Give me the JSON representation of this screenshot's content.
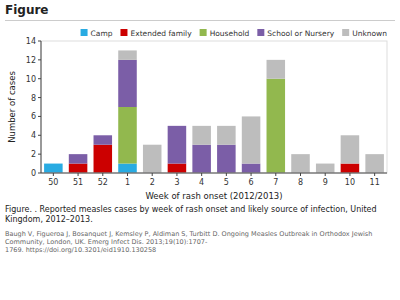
{
  "chart_data": {
    "type": "bar",
    "stacked": true,
    "title": "Figure",
    "xlabel": "Week of rash onset (2012/2013)",
    "ylabel": "Number of cases",
    "categories": [
      "50",
      "51",
      "52",
      "1",
      "2",
      "3",
      "4",
      "5",
      "6",
      "7",
      "8",
      "9",
      "10",
      "11"
    ],
    "series": [
      {
        "name": "Camp",
        "color": "#29ABE2",
        "values": [
          1,
          0,
          0,
          1,
          0,
          0,
          0,
          0,
          0,
          0,
          0,
          0,
          0,
          0
        ]
      },
      {
        "name": "Extended family",
        "color": "#CC0000",
        "values": [
          0,
          1,
          3,
          0,
          0,
          1,
          0,
          0,
          0,
          0,
          0,
          0,
          1,
          0
        ]
      },
      {
        "name": "Household",
        "color": "#92B84E",
        "values": [
          0,
          0,
          0,
          6,
          0,
          0,
          0,
          0,
          0,
          10,
          0,
          0,
          0,
          0
        ]
      },
      {
        "name": "School or Nursery",
        "color": "#7B5EA7",
        "values": [
          0,
          1,
          1,
          5,
          0,
          4,
          3,
          3,
          1,
          0,
          0,
          0,
          0,
          0
        ]
      },
      {
        "name": "Unknown",
        "color": "#BDBDBD",
        "values": [
          0,
          0,
          0,
          1,
          3,
          0,
          2,
          2,
          5,
          2,
          2,
          1,
          3,
          2
        ]
      }
    ],
    "ylim": [
      0,
      14
    ],
    "yticks": [
      0,
      2,
      4,
      6,
      8,
      10,
      12,
      14
    ],
    "grid": false,
    "legend": "upper right",
    "annotations": [
      "Figure. . Reported measles cases by week of rash onset and likely source of infection, United\nKingdom, 2012–2013.",
      "Baugh V, Figueroa J, Bosanquet J, Kemsley P, Aldiman S, Turbitt D. Ongoing Measles Outbreak in Orthodox Jewish Community, London, UK. Emerg Infect Dis. 2013;19(10):1707-\n1769. https://doi.org/10.3201/eid1910.130258"
    ]
  }
}
